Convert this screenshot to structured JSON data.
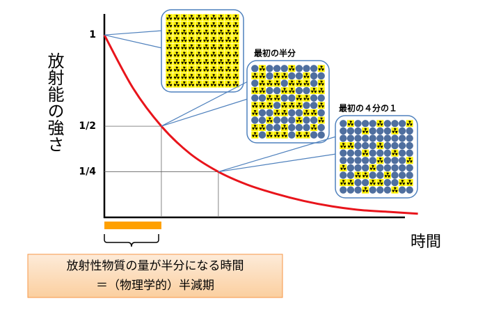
{
  "chart_data": {
    "type": "line",
    "y_label": "放射能の強さ",
    "x_label": "時間",
    "x": [
      0,
      0.5,
      1,
      1.5,
      2,
      2.5,
      3,
      3.5,
      4,
      4.5,
      5,
      5.5
    ],
    "series": [
      {
        "color": "#e8141b",
        "values": [
          1,
          0.71,
          0.5,
          0.35,
          0.25,
          0.18,
          0.13,
          0.09,
          0.06,
          0.04,
          0.03,
          0.02
        ]
      }
    ],
    "xlim": [
      0,
      5.7
    ],
    "ylim": [
      0,
      1.1
    ],
    "yticks": [
      {
        "value": 0.25,
        "label": "1/4"
      },
      {
        "value": 0.5,
        "label": "1/2"
      },
      1
    ],
    "highlight": {
      "x": [
        0,
        1
      ],
      "color": "#ffa000"
    },
    "annotations": [
      "最初の半分",
      "最初の４分の１"
    ],
    "note": [
      "放射性物質の量が半分になる時間",
      "＝（物理学的）半減期"
    ]
  }
}
